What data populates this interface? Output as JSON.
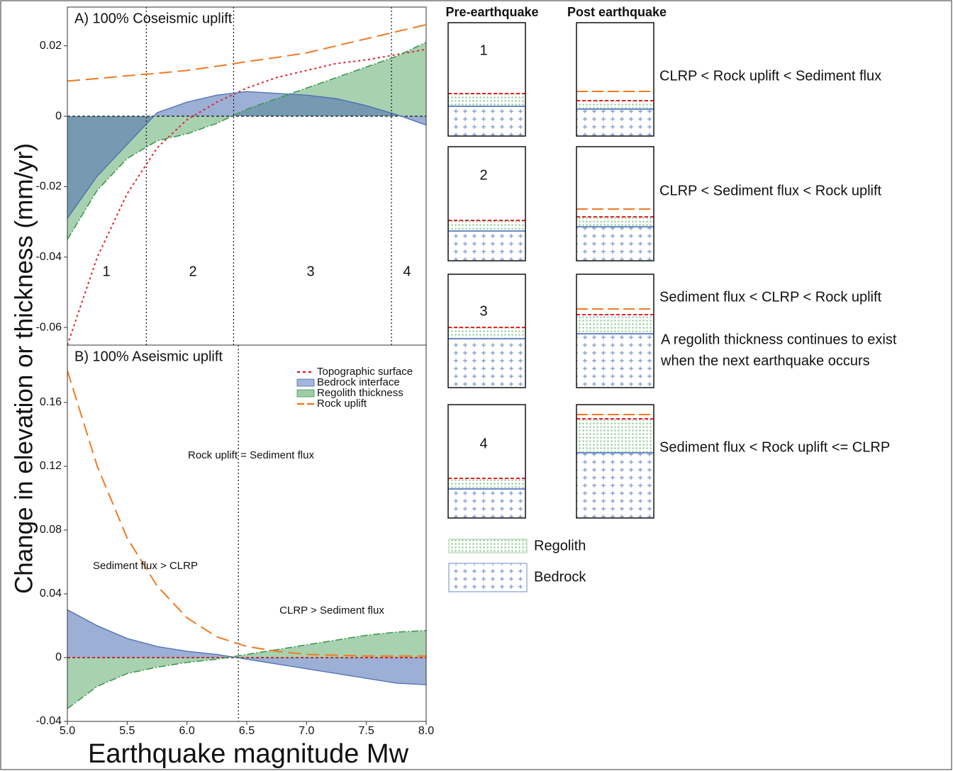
{
  "chart_data": [
    {
      "type": "area",
      "title": "A) 100% Coseismic uplift",
      "ylabel": "Change in elevation or thickness (mm/yr)",
      "x": [
        5,
        5.25,
        5.5,
        5.75,
        6,
        6.25,
        6.5,
        6.75,
        7,
        7.25,
        7.5,
        7.75,
        8
      ],
      "xlim": [
        5,
        8
      ],
      "ylim": [
        -0.065,
        0.031
      ],
      "yticks": [
        -0.06,
        -0.04,
        -0.02,
        0,
        0.02
      ],
      "hlines": [
        0
      ],
      "vlines": [
        5.66,
        6.39,
        7.71
      ],
      "annotations": [
        "1",
        "2",
        "3",
        "4"
      ],
      "series": [
        {
          "color": "#e8202a",
          "fill": false,
          "line": "dotted",
          "values": [
            -0.065,
            -0.04,
            -0.022,
            -0.009,
            -0.001,
            0.004,
            0.008,
            0.011,
            0.013,
            0.015,
            0.016,
            0.0175,
            0.019
          ]
        },
        {
          "color": "#4a6db3",
          "fill": true,
          "line": "solid",
          "values": [
            -0.029,
            -0.017,
            -0.008,
            0.001,
            0.004,
            0.006,
            0.007,
            0.0065,
            0.006,
            0.005,
            0.003,
            0.0005,
            -0.0025
          ]
        },
        {
          "color": "#3d9a50",
          "fill": true,
          "line": "dashdot",
          "values": [
            -0.035,
            -0.021,
            -0.012,
            -0.007,
            -0.005,
            -0.002,
            0.002,
            0.005,
            0.008,
            0.011,
            0.014,
            0.017,
            0.021
          ]
        },
        {
          "color": "#f07a22",
          "fill": false,
          "line": "dashed",
          "values": [
            0.01,
            0.0107,
            0.0115,
            0.0122,
            0.013,
            0.0142,
            0.0155,
            0.0167,
            0.018,
            0.02,
            0.022,
            0.024,
            0.026
          ]
        }
      ]
    },
    {
      "type": "area",
      "title": "B) 100% Aseismic uplift",
      "xlabel": "Earthquake magnitude Mw",
      "x": [
        5,
        5.25,
        5.5,
        5.75,
        6,
        6.25,
        6.5,
        6.75,
        7,
        7.25,
        7.5,
        7.75,
        8
      ],
      "xlim": [
        5,
        8
      ],
      "ylim": [
        -0.04,
        0.196
      ],
      "yticks": [
        -0.04,
        0,
        0.04,
        0.08,
        0.12,
        0.16
      ],
      "xticks": [
        {
          "value": 5,
          "label": "5.0"
        },
        5.5,
        {
          "value": 6,
          "label": "6.0"
        },
        6.5,
        {
          "value": 7,
          "label": "7.0"
        },
        7.5,
        {
          "value": 8,
          "label": "8.0"
        }
      ],
      "hlines": [
        0
      ],
      "vlines": [
        6.43
      ],
      "legend": "upper right",
      "annotations": [
        "Rock uplift = Sediment flux",
        "Sediment flux > CLRP",
        "CLRP > Sediment flux"
      ],
      "series": [
        {
          "name": "Topographic surface",
          "color": "#e8202a",
          "fill": false,
          "line": "dotted",
          "values": [
            0,
            0,
            0,
            0,
            0,
            0,
            0,
            0,
            0,
            0,
            0,
            0,
            0
          ]
        },
        {
          "name": "Bedrock interface",
          "color": "#4a6db3",
          "fill": true,
          "line": "solid",
          "values": [
            0.03,
            0.02,
            0.012,
            0.007,
            0.004,
            0.002,
            -0.001,
            -0.004,
            -0.007,
            -0.01,
            -0.013,
            -0.016,
            -0.017
          ]
        },
        {
          "name": "Regolith thickness",
          "color": "#3d9a50",
          "fill": true,
          "line": "dashdot",
          "values": [
            -0.032,
            -0.018,
            -0.01,
            -0.006,
            -0.003,
            -0.001,
            0.002,
            0.005,
            0.008,
            0.011,
            0.014,
            0.016,
            0.017
          ]
        },
        {
          "name": "Rock uplift",
          "color": "#f07a22",
          "fill": false,
          "line": "dashed",
          "values": [
            0.18,
            0.12,
            0.075,
            0.045,
            0.025,
            0.013,
            0.007,
            0.004,
            0.002,
            0.0015,
            0.001,
            0.001,
            0.001
          ]
        }
      ]
    }
  ],
  "schematic": {
    "headers": [
      "Pre-earthquake",
      "Post earthquake"
    ],
    "rows": [
      {
        "label": "1",
        "condition": "CLRP < Rock uplift < Sediment flux"
      },
      {
        "label": "2",
        "condition": "CLRP < Sediment flux < Rock uplift"
      },
      {
        "label": "3",
        "condition": "Sediment flux < CLRP < Rock uplift",
        "note": [
          "A regolith thickness continues to exist",
          "when the next earthquake occurs"
        ]
      },
      {
        "label": "4",
        "condition": "Sediment flux < Rock uplift <= CLRP"
      }
    ],
    "legend": [
      "Regolith",
      "Bedrock"
    ]
  }
}
